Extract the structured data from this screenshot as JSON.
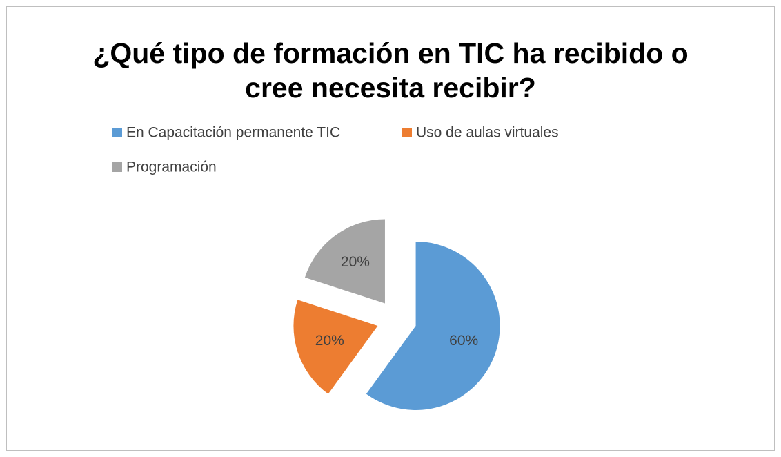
{
  "chart_data": {
    "type": "pie",
    "title": "¿Qué tipo de formación en TIC ha recibido o cree necesita recibir?",
    "categories": [
      "En Capacitación permanente TIC",
      "Uso de aulas virtuales",
      "Programación"
    ],
    "values": [
      60,
      20,
      20
    ],
    "value_labels": [
      "60%",
      "20%",
      "20%"
    ],
    "colors": [
      "#5b9bd5",
      "#ed7d31",
      "#a5a5a5"
    ],
    "legend": "top"
  }
}
